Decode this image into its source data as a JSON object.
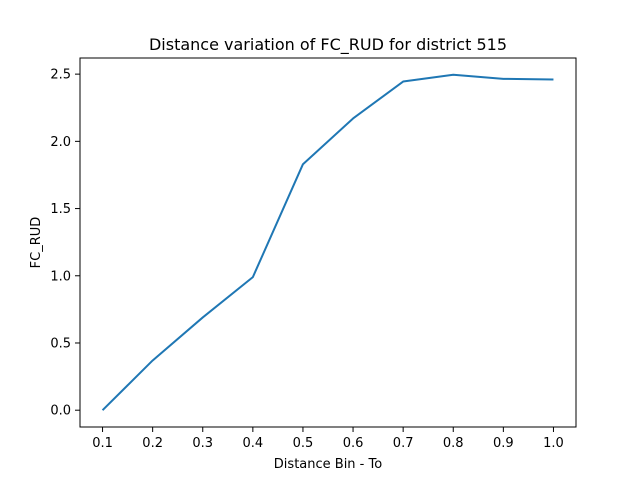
{
  "chart_data": {
    "type": "line",
    "title": "Distance variation of FC_RUD for district 515",
    "xlabel": "Distance Bin - To",
    "ylabel": "FC_RUD",
    "xlim": [
      0.055,
      1.045
    ],
    "ylim": [
      -0.125,
      2.62
    ],
    "x_ticks": [
      "0.1",
      "0.2",
      "0.3",
      "0.4",
      "0.5",
      "0.6",
      "0.7",
      "0.8",
      "0.9",
      "1.0"
    ],
    "y_ticks": [
      "0.0",
      "0.5",
      "1.0",
      "1.5",
      "2.0",
      "2.5"
    ],
    "grid": false,
    "series": [
      {
        "color": "#1f77b4",
        "x": [
          0.1,
          0.2,
          0.3,
          0.4,
          0.5,
          0.6,
          0.7,
          0.8,
          0.9,
          1.0
        ],
        "y": [
          0.0,
          0.37,
          0.69,
          0.99,
          1.83,
          2.17,
          2.445,
          2.495,
          2.465,
          2.46
        ]
      }
    ]
  }
}
